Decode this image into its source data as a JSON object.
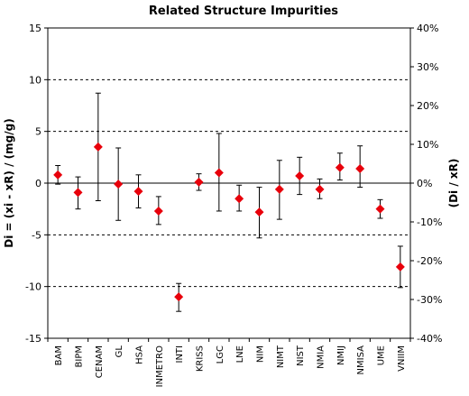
{
  "chart_data": {
    "type": "scatter",
    "title": "Related Structure Impurities",
    "ylabel_left": "Di = (xi - xR) / (mg/g)",
    "ylabel_right": "(Di / xR)",
    "ylim_left": [
      -15,
      15
    ],
    "ylim_right": [
      -40,
      40
    ],
    "yticks_left": [
      15,
      10,
      5,
      0,
      -5,
      -10,
      -15
    ],
    "yticks_left_labels": [
      "15",
      "10",
      "5",
      "0",
      "-5",
      "-10",
      "-15"
    ],
    "yticks_right": [
      40,
      30,
      20,
      10,
      0,
      -10,
      -20,
      -30,
      -40
    ],
    "yticks_right_labels": [
      "40%",
      "30%",
      "20%",
      "10%",
      "0%",
      "-10%",
      "-20%",
      "-30%",
      "-40%"
    ],
    "dashed_gridlines": [
      10,
      5,
      -5,
      -10
    ],
    "zero_line": 0,
    "legend": "none",
    "marker_color": "#e8000b",
    "categories": [
      "BAM",
      "BIPM",
      "CENAM",
      "GL",
      "HSA",
      "INMETRO",
      "INTI",
      "KRISS",
      "LGC",
      "LNE",
      "NIM",
      "NIMT",
      "NIST",
      "NMIA",
      "NMIJ",
      "NMISA",
      "UME",
      "VNIIM"
    ],
    "values": [
      0.8,
      -0.9,
      3.5,
      -0.1,
      -0.8,
      -2.7,
      -11.0,
      0.1,
      1.0,
      -1.5,
      -2.8,
      -0.6,
      0.7,
      -0.6,
      1.5,
      1.4,
      -2.5,
      -8.1
    ],
    "error_low": [
      -0.1,
      -2.5,
      -1.7,
      -3.6,
      -2.4,
      -4.0,
      -12.4,
      -0.7,
      -2.7,
      -2.7,
      -5.3,
      -3.5,
      -1.1,
      -1.5,
      0.3,
      -0.4,
      -3.4,
      -10.1
    ],
    "error_high": [
      1.7,
      0.6,
      8.7,
      3.4,
      0.8,
      -1.3,
      -9.7,
      0.9,
      4.8,
      -0.2,
      -0.4,
      2.2,
      2.5,
      0.4,
      2.9,
      3.6,
      -1.6,
      -6.1
    ]
  }
}
